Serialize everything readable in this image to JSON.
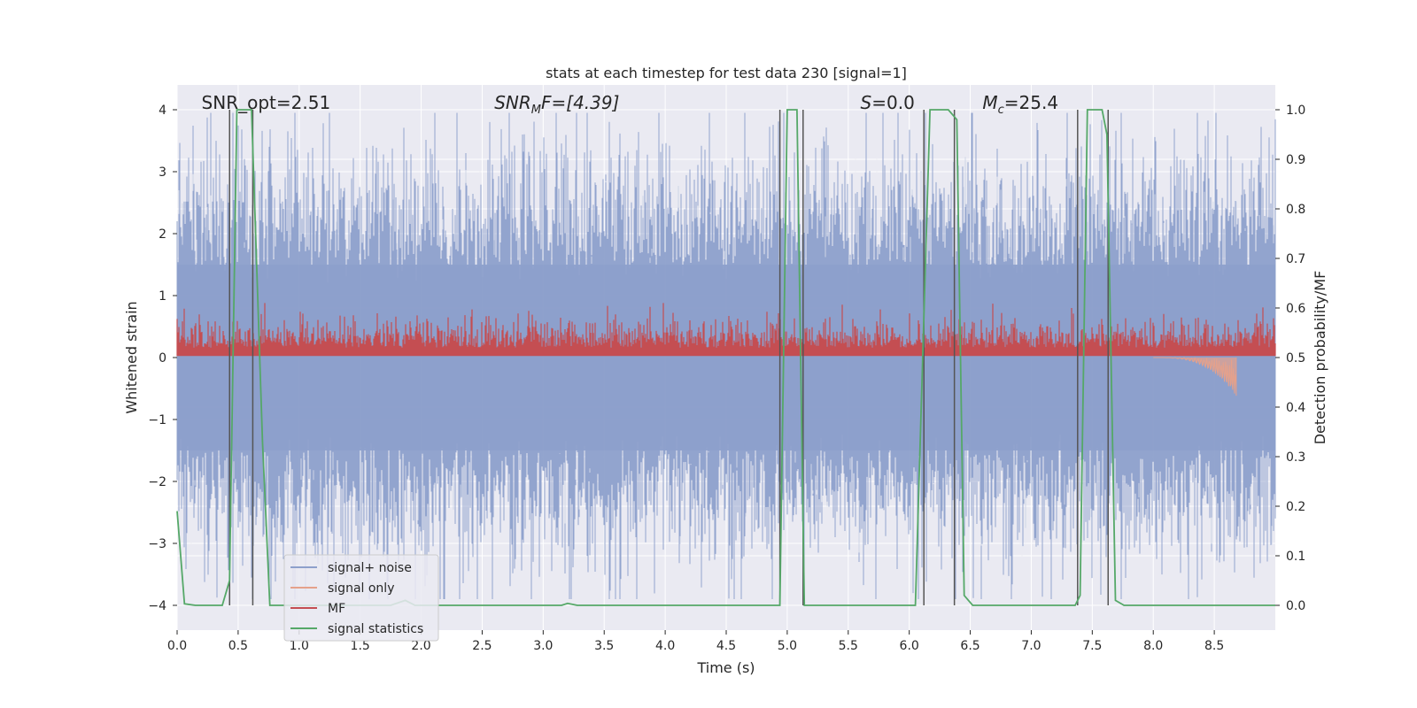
{
  "chart_data": {
    "type": "line",
    "title": "stats at each timestep for test data 230 [signal=1]",
    "xlabel": "Time (s)",
    "ylabel": "Whitened strain",
    "y2label": "Detection probability/MF",
    "xlim": [
      0.0,
      9.0
    ],
    "ylim": [
      -4.4,
      4.4
    ],
    "y2lim": [
      -0.05,
      1.05
    ],
    "xticks": [
      "0.0",
      "0.5",
      "1.0",
      "1.5",
      "2.0",
      "2.5",
      "3.0",
      "3.5",
      "4.0",
      "4.5",
      "5.0",
      "5.5",
      "6.0",
      "6.5",
      "7.0",
      "7.5",
      "8.0",
      "8.5"
    ],
    "xtick_values": [
      0.0,
      0.5,
      1.0,
      1.5,
      2.0,
      2.5,
      3.0,
      3.5,
      4.0,
      4.5,
      5.0,
      5.5,
      6.0,
      6.5,
      7.0,
      7.5,
      8.0,
      8.5
    ],
    "yticks": [
      "−4",
      "−3",
      "−2",
      "−1",
      "0",
      "1",
      "2",
      "3",
      "4"
    ],
    "ytick_values": [
      -4,
      -3,
      -2,
      -1,
      0,
      1,
      2,
      3,
      4
    ],
    "y2ticks": [
      "0.0",
      "0.1",
      "0.2",
      "0.3",
      "0.4",
      "0.5",
      "0.6",
      "0.7",
      "0.8",
      "0.9",
      "1.0"
    ],
    "y2tick_values": [
      0.0,
      0.1,
      0.2,
      0.3,
      0.4,
      0.5,
      0.6,
      0.7,
      0.8,
      0.9,
      1.0
    ],
    "grid": true,
    "legend_position": "lower-left",
    "annotations": {
      "snr_opt": {
        "text": "SNR_opt=2.51",
        "x": 0.2
      },
      "snr_mf": {
        "prefix": "SNR",
        "sub": "M",
        "suffix": "F=[4.39]",
        "x": 2.6
      },
      "s": {
        "prefix": "S",
        "suffix": "=0.0",
        "x": 5.6
      },
      "mc": {
        "prefix": "M",
        "sub": "c",
        "suffix": "=25.4",
        "x": 6.6
      }
    },
    "series": [
      {
        "name": "signal+ noise",
        "color": "#8da0cb",
        "axis": "left",
        "description_range": [
          -3.9,
          4.0
        ]
      },
      {
        "name": "signal only",
        "color": "#e5a18b",
        "axis": "left",
        "chirp": {
          "start": 8.0,
          "end": 8.68,
          "min_y": -0.62
        }
      },
      {
        "name": "MF",
        "color": "#c44e52",
        "axis": "right",
        "baseline": 0.5,
        "range": [
          0.5,
          0.61
        ]
      },
      {
        "name": "signal statistics",
        "color": "#55a868",
        "axis": "right",
        "points": [
          [
            0.0,
            0.19
          ],
          [
            0.06,
            0.003
          ],
          [
            0.15,
            0.0
          ],
          [
            0.37,
            0.0
          ],
          [
            0.43,
            0.05
          ],
          [
            0.49,
            1.0
          ],
          [
            0.61,
            1.0
          ],
          [
            0.7,
            0.33
          ],
          [
            0.76,
            0.0
          ],
          [
            1.75,
            0.0
          ],
          [
            1.87,
            0.01
          ],
          [
            1.95,
            0.0
          ],
          [
            3.15,
            0.0
          ],
          [
            3.2,
            0.004
          ],
          [
            3.28,
            0.0
          ],
          [
            4.94,
            0.0
          ],
          [
            5.0,
            1.0
          ],
          [
            5.08,
            1.0
          ],
          [
            5.14,
            0.0
          ],
          [
            5.22,
            0.0
          ],
          [
            6.05,
            0.0
          ],
          [
            6.17,
            1.0
          ],
          [
            6.32,
            1.0
          ],
          [
            6.39,
            0.98
          ],
          [
            6.45,
            0.02
          ],
          [
            6.52,
            0.0
          ],
          [
            7.36,
            0.0
          ],
          [
            7.4,
            0.02
          ],
          [
            7.46,
            1.0
          ],
          [
            7.58,
            1.0
          ],
          [
            7.62,
            0.95
          ],
          [
            7.69,
            0.01
          ],
          [
            7.76,
            0.0
          ],
          [
            9.0,
            0.0
          ]
        ]
      }
    ],
    "vertical_lines": [
      0.43,
      0.62,
      4.94,
      5.13,
      6.12,
      6.37,
      7.38,
      7.63
    ]
  }
}
